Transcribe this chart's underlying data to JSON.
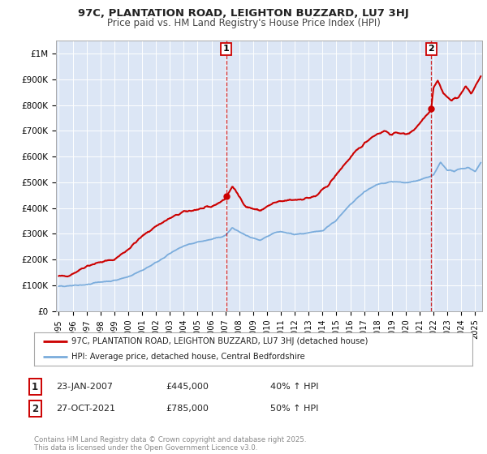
{
  "title": "97C, PLANTATION ROAD, LEIGHTON BUZZARD, LU7 3HJ",
  "subtitle": "Price paid vs. HM Land Registry's House Price Index (HPI)",
  "background_color": "#ffffff",
  "plot_bg_color": "#dce6f5",
  "red_line_label": "97C, PLANTATION ROAD, LEIGHTON BUZZARD, LU7 3HJ (detached house)",
  "blue_line_label": "HPI: Average price, detached house, Central Bedfordshire",
  "marker1_x": 2007.07,
  "marker1_y": 445000,
  "marker2_x": 2021.83,
  "marker2_y": 785000,
  "annotation1": [
    "1",
    "23-JAN-2007",
    "£445,000",
    "40% ↑ HPI"
  ],
  "annotation2": [
    "2",
    "27-OCT-2021",
    "£785,000",
    "50% ↑ HPI"
  ],
  "footer": "Contains HM Land Registry data © Crown copyright and database right 2025.\nThis data is licensed under the Open Government Licence v3.0.",
  "ylim": [
    0,
    1050000
  ],
  "xlim": [
    1994.8,
    2025.5
  ],
  "yticks": [
    0,
    100000,
    200000,
    300000,
    400000,
    500000,
    600000,
    700000,
    800000,
    900000,
    1000000
  ],
  "ytick_labels": [
    "£0",
    "£100K",
    "£200K",
    "£300K",
    "£400K",
    "£500K",
    "£600K",
    "£700K",
    "£800K",
    "£900K",
    "£1M"
  ],
  "xticks": [
    1995,
    1996,
    1997,
    1998,
    1999,
    2000,
    2001,
    2002,
    2003,
    2004,
    2005,
    2006,
    2007,
    2008,
    2009,
    2010,
    2011,
    2012,
    2013,
    2014,
    2015,
    2016,
    2017,
    2018,
    2019,
    2020,
    2021,
    2022,
    2023,
    2024,
    2025
  ],
  "red_color": "#cc0000",
  "blue_color": "#7aacdc",
  "dashed_color": "#cc0000",
  "grid_color": "#ffffff",
  "title_fontsize": 9.5,
  "subtitle_fontsize": 8.5
}
